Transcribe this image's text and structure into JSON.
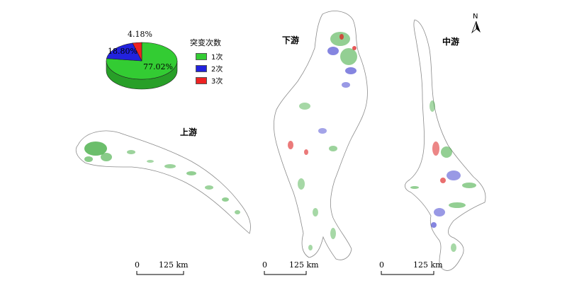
{
  "regions": {
    "upper": "上游",
    "lower": "下游",
    "middle": "中游"
  },
  "north_arrow": {
    "label": "N"
  },
  "pie": {
    "slices": [
      {
        "label": "77.02%",
        "value": 77.02,
        "color": "#33cc33"
      },
      {
        "label": "18.80%",
        "value": 18.8,
        "color": "#2222dd"
      },
      {
        "label": "4.18%",
        "value": 4.18,
        "color": "#ee2222"
      }
    ]
  },
  "legend": {
    "title": "突变次数",
    "items": [
      {
        "label": "1次",
        "color": "#33cc33"
      },
      {
        "label": "2次",
        "color": "#2222dd"
      },
      {
        "label": "3次",
        "color": "#ee2222"
      }
    ]
  },
  "scale_bars": [
    {
      "zero": "0",
      "distance": "125 km"
    },
    {
      "zero": "0",
      "distance": "125 km"
    },
    {
      "zero": "0",
      "distance": "125 km"
    }
  ]
}
